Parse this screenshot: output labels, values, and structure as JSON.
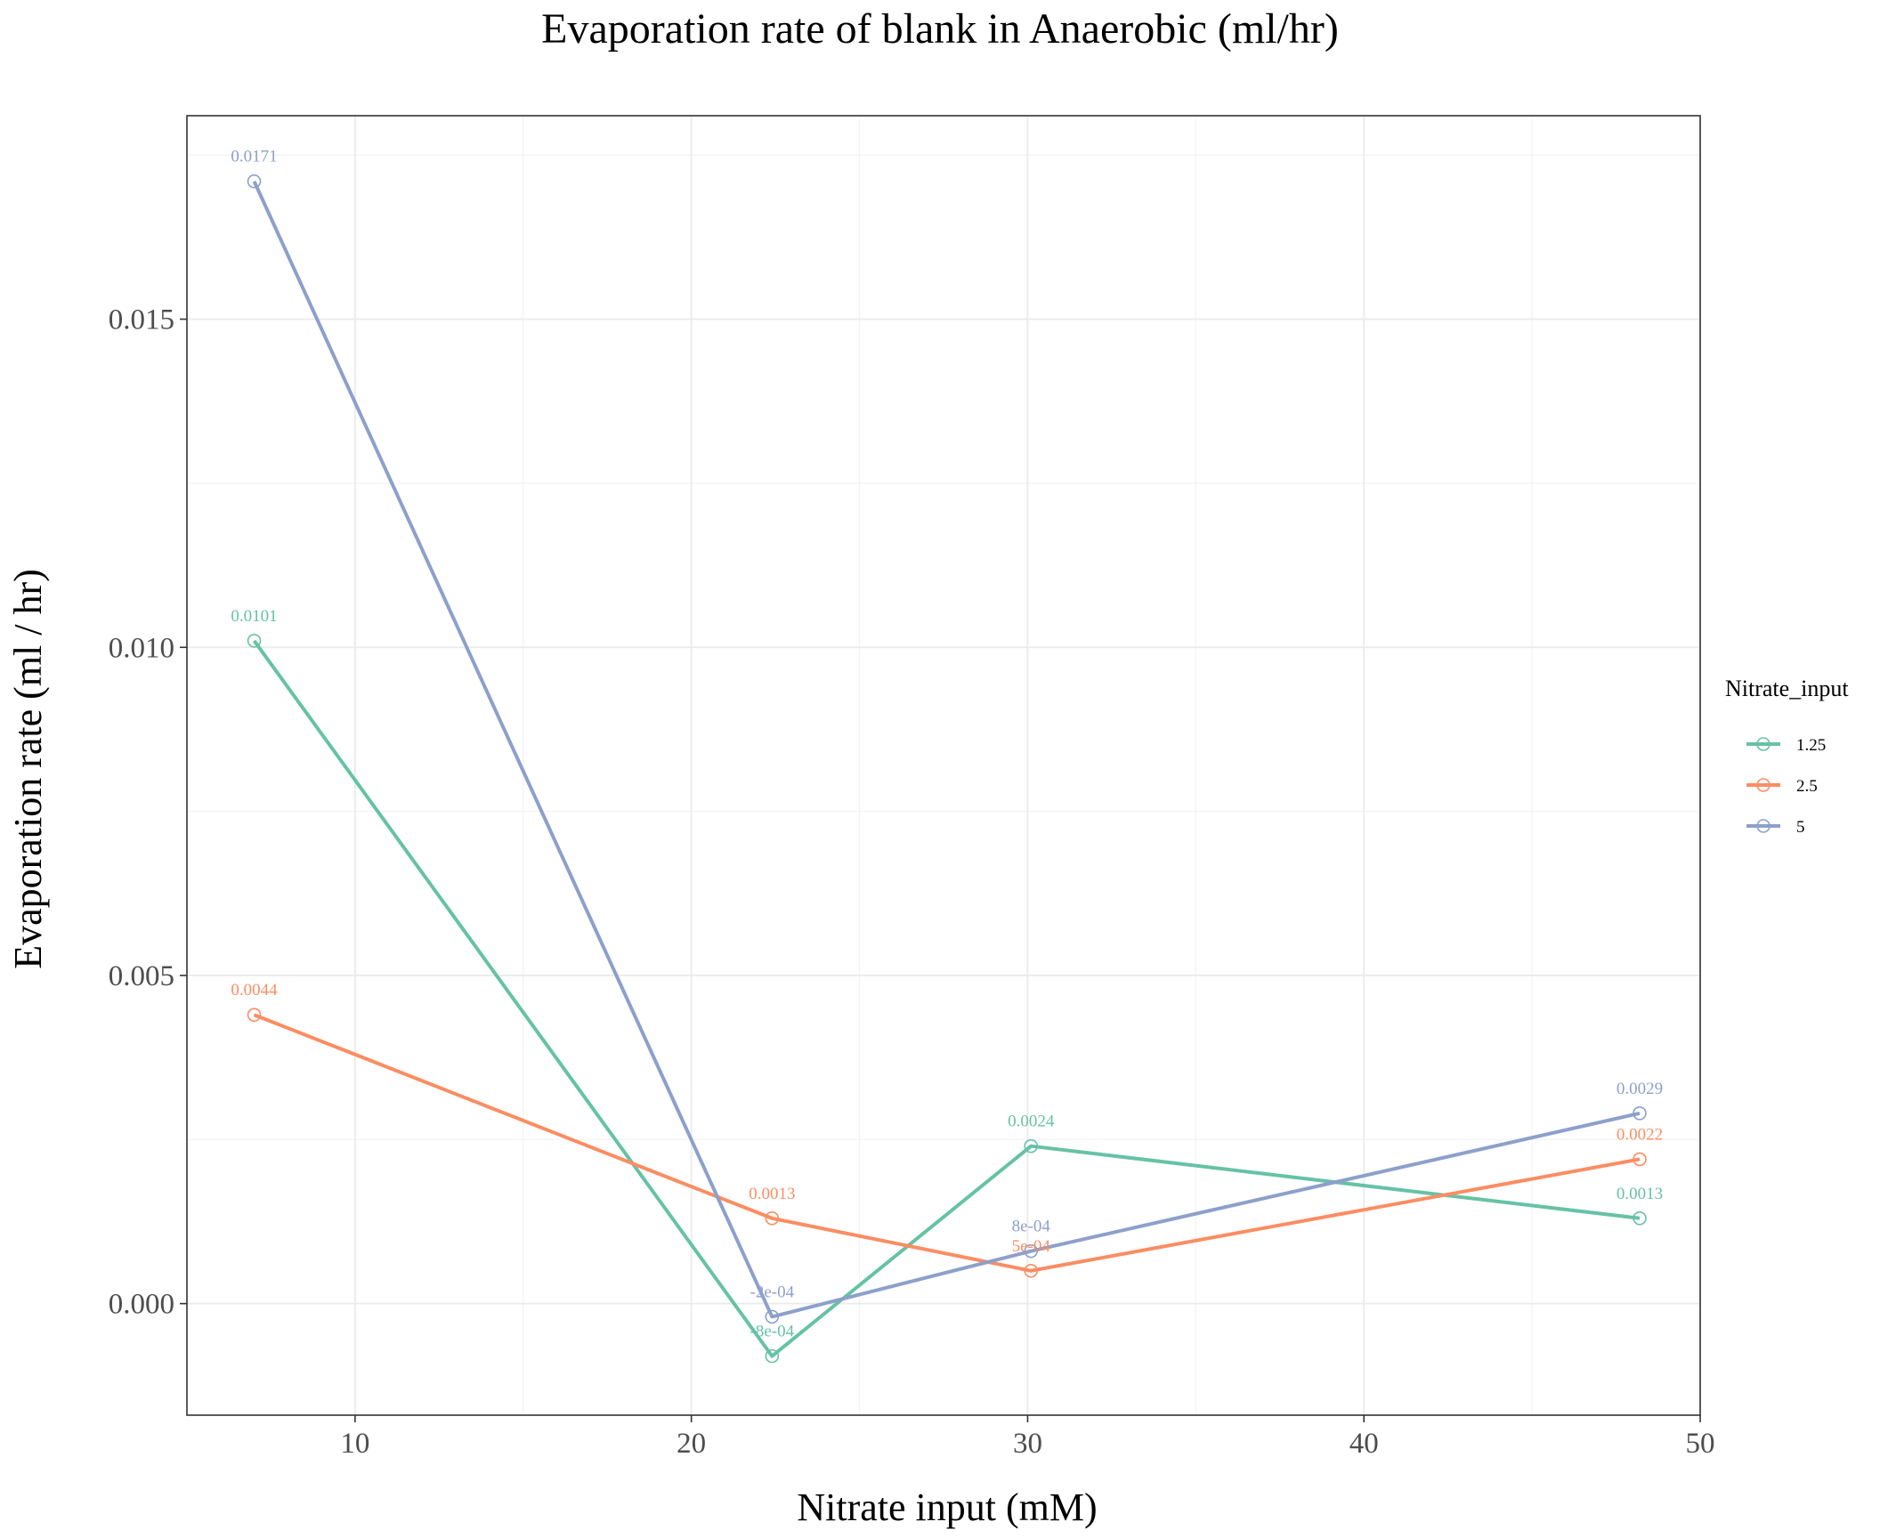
{
  "chart_data": {
    "type": "line",
    "title": "Evaporation rate of blank in Anaerobic (ml/hr)",
    "xlabel": "Nitrate input (mM)",
    "ylabel": "Evaporation rate (ml / hr)",
    "xlim": [
      5,
      50
    ],
    "ylim": [
      -0.0017,
      0.0181
    ],
    "x_ticks": [
      10,
      20,
      30,
      40,
      50
    ],
    "y_ticks": [
      0.0,
      0.005,
      0.01,
      0.015
    ],
    "y_tick_labels": [
      "0.000",
      "0.005",
      "0.010",
      "0.015"
    ],
    "grid": true,
    "legend": {
      "title": "Nitrate_input",
      "position": "right"
    },
    "series": [
      {
        "name": "1.25",
        "color": "#66c2a5",
        "points": [
          {
            "x": 7.0,
            "y": 0.0101,
            "label": "0.0101"
          },
          {
            "x": 22.4,
            "y": -0.0008,
            "label": "-8e-04"
          },
          {
            "x": 30.1,
            "y": 0.0024,
            "label": "0.0024"
          },
          {
            "x": 48.2,
            "y": 0.0013,
            "label": "0.0013"
          }
        ]
      },
      {
        "name": "2.5",
        "color": "#fc8d62",
        "points": [
          {
            "x": 7.0,
            "y": 0.0044,
            "label": "0.0044"
          },
          {
            "x": 22.4,
            "y": 0.0013,
            "label": "0.0013"
          },
          {
            "x": 30.1,
            "y": 0.0005,
            "label": "5e-04"
          },
          {
            "x": 48.2,
            "y": 0.0022,
            "label": "0.0022"
          }
        ]
      },
      {
        "name": "5",
        "color": "#8da0cb",
        "points": [
          {
            "x": 7.0,
            "y": 0.0171,
            "label": "0.0171"
          },
          {
            "x": 22.4,
            "y": -0.0002,
            "label": "-2e-04"
          },
          {
            "x": 30.1,
            "y": 0.0008,
            "label": "8e-04"
          },
          {
            "x": 48.2,
            "y": 0.0029,
            "label": "0.0029"
          }
        ]
      }
    ]
  }
}
